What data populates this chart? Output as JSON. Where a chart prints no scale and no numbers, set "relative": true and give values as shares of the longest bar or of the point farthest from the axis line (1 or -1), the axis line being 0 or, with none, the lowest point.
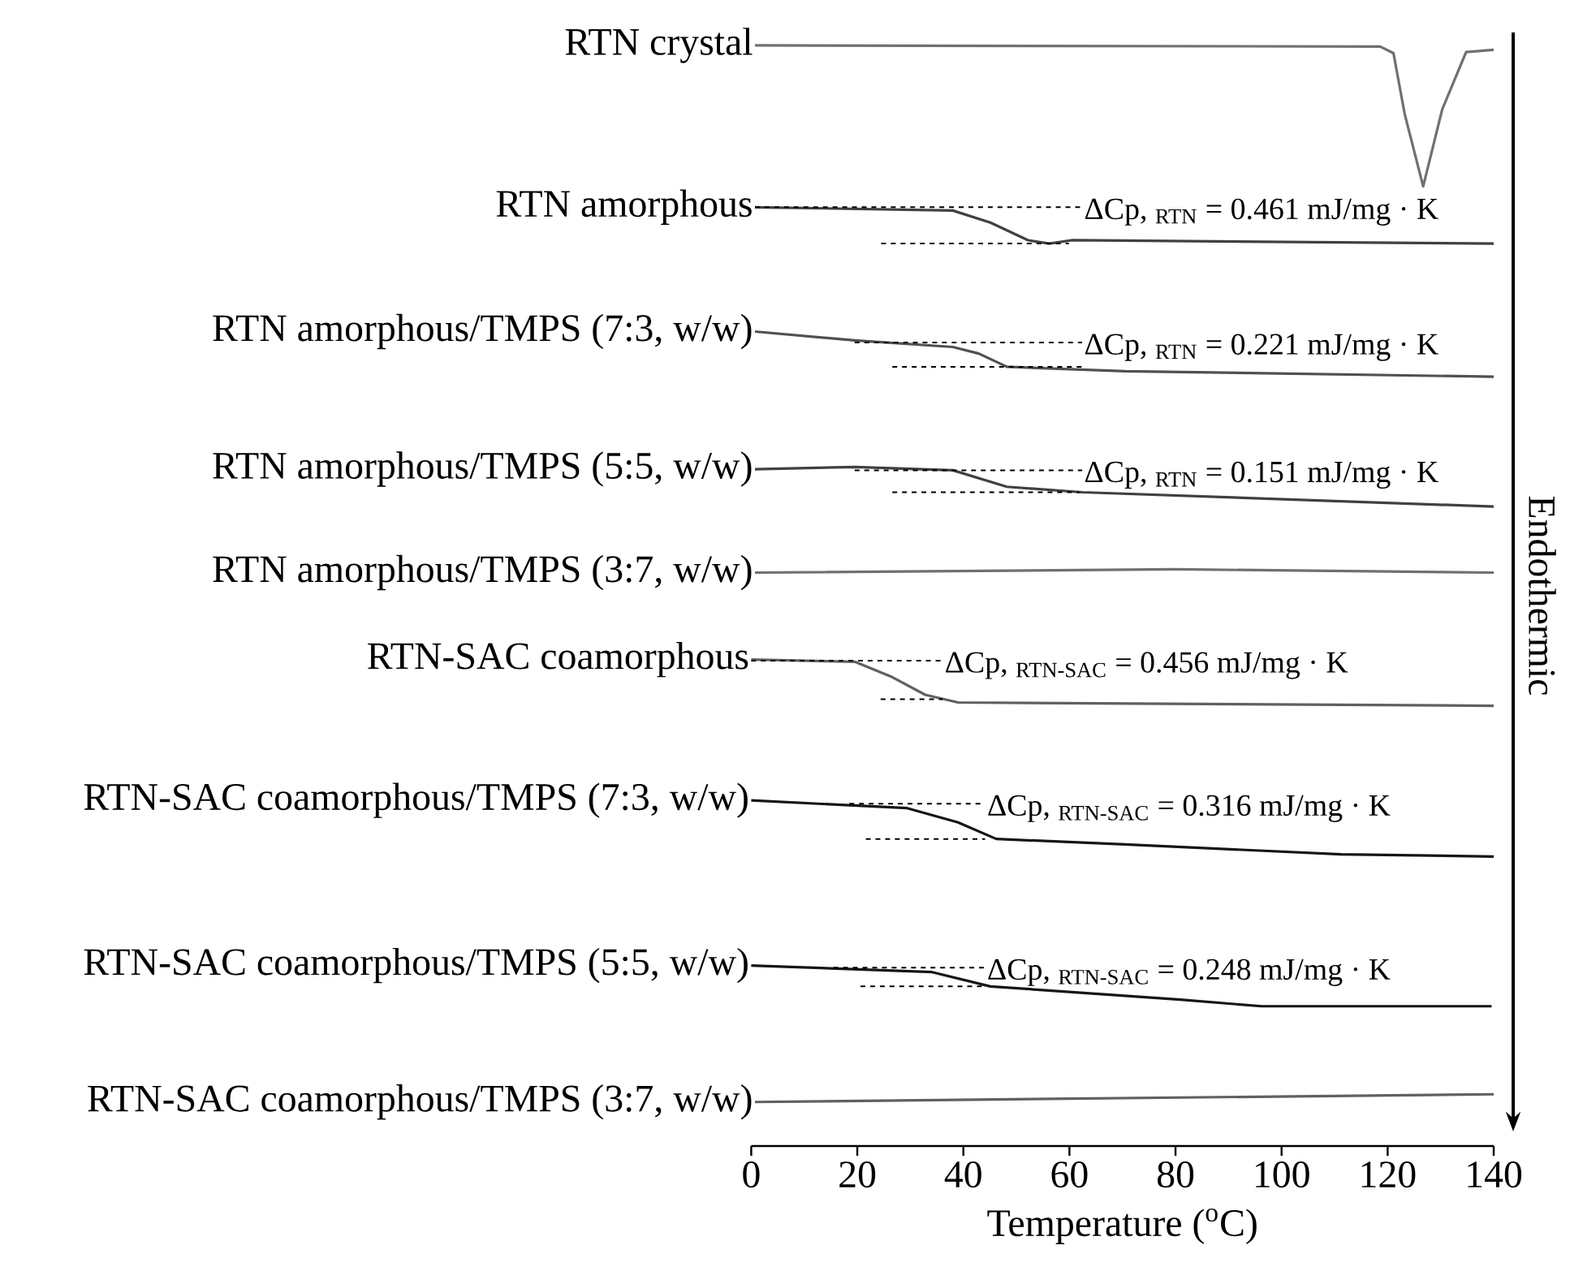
{
  "chart_data": {
    "type": "line",
    "relative": true,
    "xlabel": "Temperature ($^{o}$C)",
    "ylabel": "Endothermic",
    "xlim": [
      0,
      140
    ],
    "xticks": [
      0,
      20,
      40,
      60,
      80,
      100,
      120,
      140
    ],
    "tick_labels": "x",
    "marker": "none",
    "series": [
      {
        "name": "RTN crystal",
        "color": "#707070",
        "x": [
          0.7,
          118.6,
          121.1,
          123.2,
          126.7,
          130.3,
          134.8,
          140
        ],
        "values": [
          1.0,
          0.999,
          0.993,
          0.938,
          0.872,
          0.942,
          0.994,
          0.996
        ]
      },
      {
        "name": "RTN amorphous",
        "color": "#404040",
        "x": [
          0.7,
          38,
          45.1,
          52.2,
          56.2,
          60.4,
          140
        ],
        "values": [
          0.853,
          0.85,
          0.839,
          0.823,
          0.82,
          0.823,
          0.82
        ]
      },
      {
        "name": "RTN amorphous/TMPS (7:3, w/w)",
        "color": "#505050",
        "x": [
          0.7,
          19.5,
          38,
          42.9,
          48.2,
          70.5,
          140
        ],
        "values": [
          0.74,
          0.732,
          0.726,
          0.72,
          0.708,
          0.704,
          0.699
        ]
      },
      {
        "name": "RTN amorphous/TMPS (5:5, w/w)",
        "color": "#404040",
        "x": [
          0.7,
          19.5,
          38,
          48.2,
          62.4,
          140
        ],
        "values": [
          0.615,
          0.617,
          0.614,
          0.599,
          0.594,
          0.581
        ]
      },
      {
        "name": "RTN amorphous/TMPS (3:7, w/w)",
        "color": "#707070",
        "x": [
          0.7,
          80,
          140
        ],
        "values": [
          0.521,
          0.524,
          0.521
        ]
      },
      {
        "name": "RTN-SAC coamorphous",
        "color": "#606060",
        "x": [
          0,
          19.5,
          26.6,
          32.8,
          39,
          140
        ],
        "values": [
          0.442,
          0.44,
          0.426,
          0.41,
          0.403,
          0.4
        ]
      },
      {
        "name": "RTN-SAC coamorphous/TMPS (7:3, w/w)",
        "color": "#151515",
        "x": [
          0,
          29.4,
          39,
          46.2,
          70.5,
          111.3,
          140
        ],
        "values": [
          0.314,
          0.307,
          0.294,
          0.279,
          0.274,
          0.265,
          0.263
        ]
      },
      {
        "name": "RTN-SAC coamorphous/TMPS (5:5, w/w)",
        "color": "#151515",
        "x": [
          0,
          34.1,
          45.1,
          80.9,
          96.2,
          139.6
        ],
        "values": [
          0.164,
          0.158,
          0.145,
          0.133,
          0.127,
          0.127
        ]
      },
      {
        "name": "RTN-SAC coamorphous/TMPS (3:7, w/w)",
        "color": "#606060",
        "x": [
          0.7,
          140
        ],
        "values": [
          0.04,
          0.047
        ]
      },
      {
        "color": "#000000",
        "line_style": "dashed",
        "x": [
          0.7,
          62.4
        ],
        "values": [
          0.853,
          0.853
        ]
      },
      {
        "color": "#000000",
        "line_style": "dashed",
        "x": [
          24.5,
          59.9
        ],
        "values": [
          0.82,
          0.82
        ]
      },
      {
        "color": "#000000",
        "line_style": "dashed",
        "x": [
          19.5,
          62.4
        ],
        "values": [
          0.73,
          0.73
        ]
      },
      {
        "color": "#000000",
        "line_style": "dashed",
        "x": [
          26.6,
          62.4
        ],
        "values": [
          0.708,
          0.708
        ]
      },
      {
        "color": "#000000",
        "line_style": "dashed",
        "x": [
          19.5,
          62.4
        ],
        "values": [
          0.614,
          0.614
        ]
      },
      {
        "color": "#000000",
        "line_style": "dashed",
        "x": [
          26.6,
          61.9
        ],
        "values": [
          0.594,
          0.594
        ]
      },
      {
        "color": "#000000",
        "line_style": "dashed",
        "x": [
          0,
          36.1
        ],
        "values": [
          0.441,
          0.441
        ]
      },
      {
        "color": "#000000",
        "line_style": "dashed",
        "x": [
          24.4,
          36.1
        ],
        "values": [
          0.406,
          0.406
        ]
      },
      {
        "color": "#000000",
        "line_style": "dashed",
        "x": [
          18.5,
          44.1
        ],
        "values": [
          0.311,
          0.311
        ]
      },
      {
        "color": "#000000",
        "line_style": "dashed",
        "x": [
          21.6,
          44.1
        ],
        "values": [
          0.279,
          0.279
        ]
      },
      {
        "color": "#000000",
        "line_style": "dashed",
        "x": [
          15.5,
          44.1
        ],
        "values": [
          0.162,
          0.162
        ]
      },
      {
        "color": "#000000",
        "line_style": "dashed",
        "x": [
          20.6,
          44.1
        ],
        "values": [
          0.145,
          0.145
        ]
      }
    ],
    "annotations": [
      "ΔCp, $_{RTN}$ = 0.461 mJ/mg · K",
      "ΔCp, $_{RTN}$ = 0.221 mJ/mg · K",
      "ΔCp, $_{RTN}$ = 0.151 mJ/mg · K",
      "ΔCp, $_{RTN-SAC}$ = 0.456 mJ/mg · K",
      "ΔCp, $_{RTN-SAC}$ = 0.316 mJ/mg · K",
      "ΔCp, $_{RTN-SAC}$ = 0.248 mJ/mg · K"
    ]
  }
}
